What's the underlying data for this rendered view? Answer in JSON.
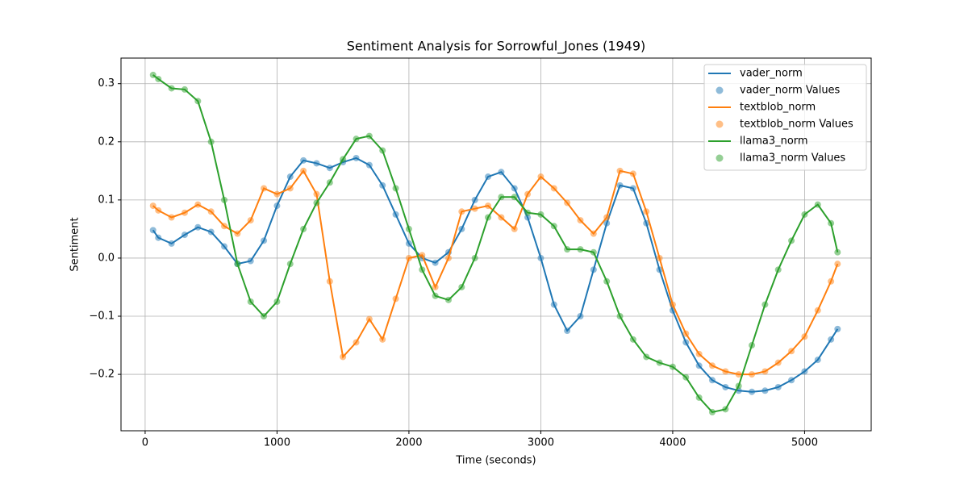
{
  "chart_data": {
    "type": "line",
    "title": "Sentiment Analysis for Sorrowful_Jones (1949)",
    "x_label": "Time (seconds)",
    "y_label": "Sentiment",
    "x": [
      60,
      100,
      200,
      300,
      400,
      500,
      600,
      700,
      800,
      900,
      1000,
      1100,
      1200,
      1300,
      1400,
      1500,
      1600,
      1700,
      1800,
      1900,
      2000,
      2100,
      2200,
      2300,
      2400,
      2500,
      2600,
      2700,
      2800,
      2900,
      3000,
      3100,
      3200,
      3300,
      3400,
      3500,
      3600,
      3700,
      3800,
      3900,
      4000,
      4100,
      4200,
      4300,
      4400,
      4500,
      4600,
      4700,
      4800,
      4900,
      5000,
      5100,
      5200,
      5250
    ],
    "series": [
      {
        "name": "vader_norm",
        "mode": "line",
        "color": "#1f77b4",
        "values": [
          0.048,
          0.035,
          0.025,
          0.04,
          0.053,
          0.045,
          0.02,
          -0.01,
          -0.005,
          0.03,
          0.09,
          0.14,
          0.168,
          0.163,
          0.155,
          0.165,
          0.172,
          0.16,
          0.125,
          0.075,
          0.025,
          0.0,
          -0.008,
          0.01,
          0.05,
          0.1,
          0.14,
          0.148,
          0.12,
          0.07,
          0.0,
          -0.08,
          -0.125,
          -0.1,
          -0.02,
          0.06,
          0.125,
          0.12,
          0.06,
          -0.02,
          -0.09,
          -0.145,
          -0.185,
          -0.21,
          -0.222,
          -0.228,
          -0.23,
          -0.228,
          -0.222,
          -0.21,
          -0.195,
          -0.175,
          -0.14,
          -0.122
        ]
      },
      {
        "name": "vader_norm Values",
        "mode": "scatter",
        "color": "#1f77b4",
        "values": [
          0.048,
          0.035,
          0.025,
          0.04,
          0.053,
          0.045,
          0.02,
          -0.01,
          -0.005,
          0.03,
          0.09,
          0.14,
          0.168,
          0.163,
          0.155,
          0.165,
          0.172,
          0.16,
          0.125,
          0.075,
          0.025,
          0.0,
          -0.008,
          0.01,
          0.05,
          0.1,
          0.14,
          0.148,
          0.12,
          0.07,
          0.0,
          -0.08,
          -0.125,
          -0.1,
          -0.02,
          0.06,
          0.125,
          0.12,
          0.06,
          -0.02,
          -0.09,
          -0.145,
          -0.185,
          -0.21,
          -0.222,
          -0.228,
          -0.23,
          -0.228,
          -0.222,
          -0.21,
          -0.195,
          -0.175,
          -0.14,
          -0.122
        ]
      },
      {
        "name": "textblob_norm",
        "mode": "line",
        "color": "#ff7f0e",
        "values": [
          0.09,
          0.082,
          0.07,
          0.078,
          0.092,
          0.08,
          0.055,
          0.042,
          0.065,
          0.12,
          0.11,
          0.12,
          0.15,
          0.11,
          -0.04,
          -0.17,
          -0.145,
          -0.105,
          -0.14,
          -0.07,
          0.0,
          0.005,
          -0.05,
          0.0,
          0.08,
          0.085,
          0.09,
          0.07,
          0.05,
          0.11,
          0.14,
          0.12,
          0.095,
          0.065,
          0.042,
          0.07,
          0.15,
          0.145,
          0.08,
          0.0,
          -0.08,
          -0.13,
          -0.165,
          -0.185,
          -0.195,
          -0.2,
          -0.2,
          -0.195,
          -0.18,
          -0.16,
          -0.135,
          -0.09,
          -0.04,
          -0.01
        ]
      },
      {
        "name": "textblob_norm Values",
        "mode": "scatter",
        "color": "#ff7f0e",
        "values": [
          0.09,
          0.082,
          0.07,
          0.078,
          0.092,
          0.08,
          0.055,
          0.042,
          0.065,
          0.12,
          0.11,
          0.12,
          0.15,
          0.11,
          -0.04,
          -0.17,
          -0.145,
          -0.105,
          -0.14,
          -0.07,
          0.0,
          0.005,
          -0.05,
          0.0,
          0.08,
          0.085,
          0.09,
          0.07,
          0.05,
          0.11,
          0.14,
          0.12,
          0.095,
          0.065,
          0.042,
          0.07,
          0.15,
          0.145,
          0.08,
          0.0,
          -0.08,
          -0.13,
          -0.165,
          -0.185,
          -0.195,
          -0.2,
          -0.2,
          -0.195,
          -0.18,
          -0.16,
          -0.135,
          -0.09,
          -0.04,
          -0.01
        ]
      },
      {
        "name": "llama3_norm",
        "mode": "line",
        "color": "#2ca02c",
        "values": [
          0.315,
          0.308,
          0.292,
          0.29,
          0.27,
          0.2,
          0.1,
          -0.01,
          -0.075,
          -0.1,
          -0.075,
          -0.01,
          0.05,
          0.095,
          0.13,
          0.17,
          0.205,
          0.21,
          0.185,
          0.12,
          0.05,
          -0.02,
          -0.065,
          -0.072,
          -0.05,
          0.0,
          0.07,
          0.105,
          0.105,
          0.078,
          0.075,
          0.055,
          0.015,
          0.015,
          0.01,
          -0.04,
          -0.1,
          -0.14,
          -0.17,
          -0.18,
          -0.187,
          -0.205,
          -0.24,
          -0.265,
          -0.26,
          -0.22,
          -0.15,
          -0.08,
          -0.02,
          0.03,
          0.075,
          0.092,
          0.06,
          0.01
        ]
      },
      {
        "name": "llama3_norm Values",
        "mode": "scatter",
        "color": "#2ca02c",
        "values": [
          0.315,
          0.308,
          0.292,
          0.29,
          0.27,
          0.2,
          0.1,
          -0.01,
          -0.075,
          -0.1,
          -0.075,
          -0.01,
          0.05,
          0.095,
          0.13,
          0.17,
          0.205,
          0.21,
          0.185,
          0.12,
          0.05,
          -0.02,
          -0.065,
          -0.072,
          -0.05,
          0.0,
          0.07,
          0.105,
          0.105,
          0.078,
          0.075,
          0.055,
          0.015,
          0.015,
          0.01,
          -0.04,
          -0.1,
          -0.14,
          -0.17,
          -0.18,
          -0.187,
          -0.205,
          -0.24,
          -0.265,
          -0.26,
          -0.22,
          -0.15,
          -0.08,
          -0.02,
          0.03,
          0.075,
          0.092,
          0.06,
          0.01
        ]
      }
    ],
    "xlim": [
      -183,
      5505
    ],
    "ylim": [
      -0.297,
      0.344
    ],
    "xticks": [
      0,
      1000,
      2000,
      3000,
      4000,
      5000
    ],
    "yticks": [
      {
        "value": -0.2,
        "label": "−0.2"
      },
      {
        "value": -0.1,
        "label": "−0.1"
      },
      {
        "value": 0,
        "label": "0.0"
      },
      0.1,
      0.2,
      0.3
    ],
    "grid": true,
    "legend": "upper right"
  }
}
